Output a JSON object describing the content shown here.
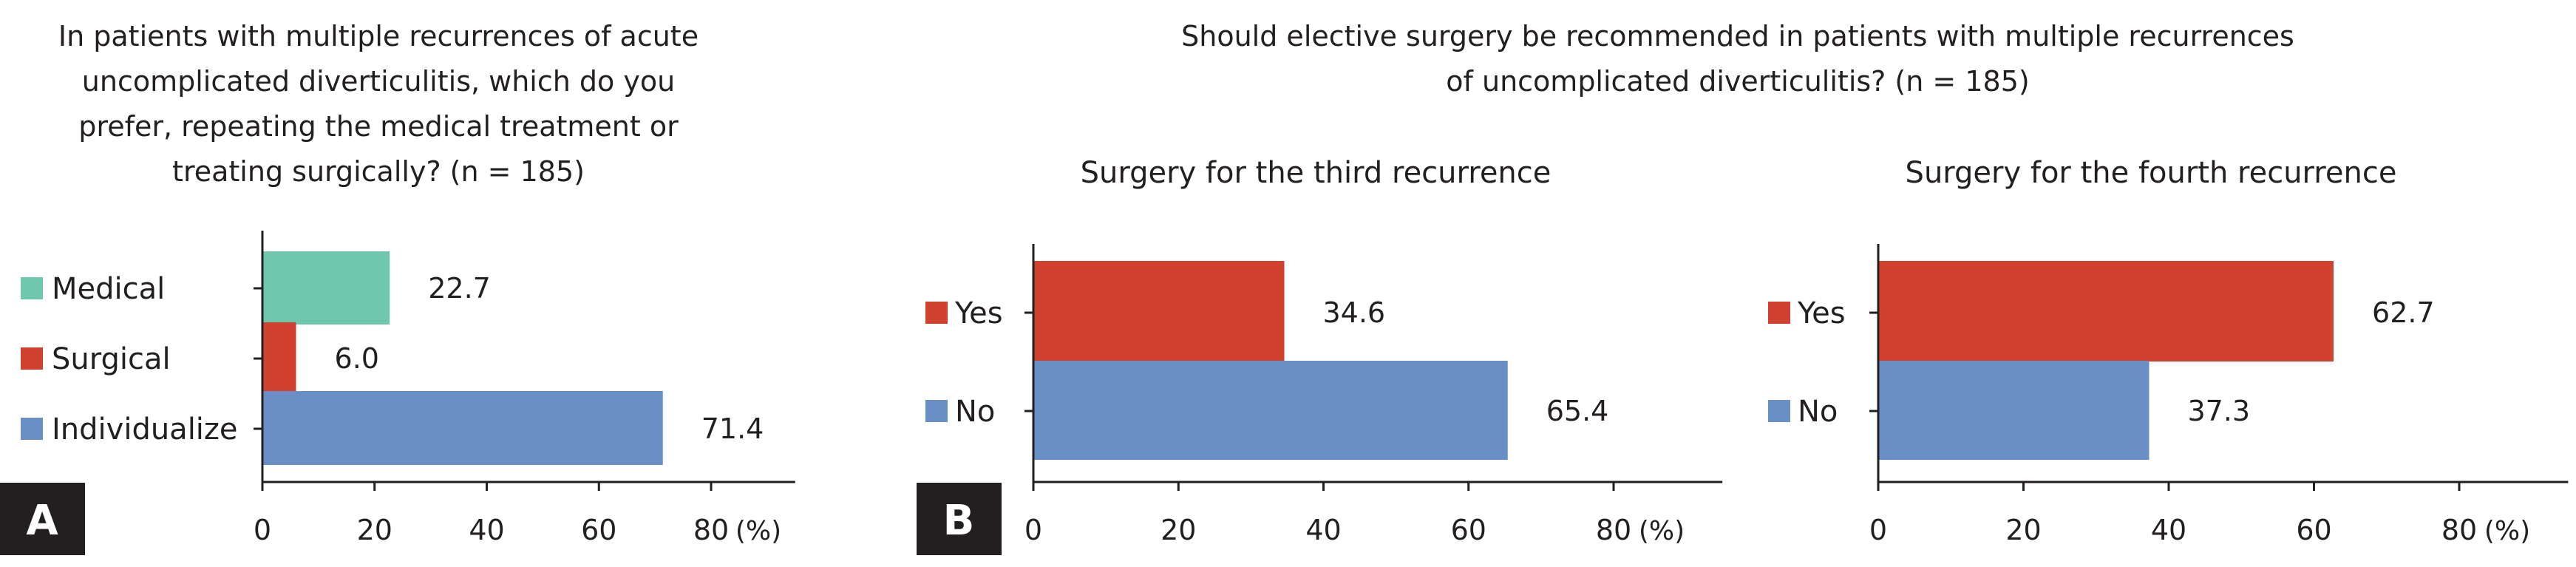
{
  "colors": {
    "medical": "#6fc7ae",
    "surgical": "#d0412f",
    "individualize": "#6a8ec6",
    "yes": "#d0412f",
    "no": "#6a8ec6",
    "axis": "#231f20",
    "badge": "#231f20"
  },
  "chart_data": [
    {
      "type": "bar",
      "orientation": "horizontal",
      "panel": "A",
      "title": "In patients with multiple recurrences of acute uncomplicated diverticulitis, which do you prefer, repeating the medical treatment or treating surgically? (n = 185)",
      "title_lines": [
        "In patients with multiple recurrences of acute",
        "uncomplicated diverticulitis, which do you",
        "prefer, repeating the medical treatment or",
        "treating surgically? (n = 185)"
      ],
      "subtitle": "",
      "categories": [
        "Medical",
        "Surgical",
        "Individualize"
      ],
      "values": [
        22.7,
        6.0,
        71.4
      ],
      "value_labels": [
        "22.7",
        "6.0",
        "71.4"
      ],
      "xlim": [
        0,
        95
      ],
      "xticks": [
        0,
        20,
        40,
        60,
        80
      ],
      "xunit": "(%)",
      "legend": "left"
    },
    {
      "type": "bar",
      "orientation": "horizontal",
      "panel": "B",
      "title": "Should elective surgery be recommended in patients with multiple recurrences of uncomplicated diverticulitis? (n = 185)",
      "title_lines": [
        "Should elective surgery be recommended in patients with multiple recurrences",
        "of uncomplicated diverticulitis? (n = 185)"
      ],
      "subtitle": "Surgery for the third recurrence",
      "categories": [
        "Yes",
        "No"
      ],
      "values": [
        34.6,
        65.4
      ],
      "value_labels": [
        "34.6",
        "65.4"
      ],
      "xlim": [
        0,
        95
      ],
      "xticks": [
        0,
        20,
        40,
        60,
        80
      ],
      "xunit": "(%)",
      "legend": "left"
    },
    {
      "type": "bar",
      "orientation": "horizontal",
      "subtitle": "Surgery for the fourth recurrence",
      "categories": [
        "Yes",
        "No"
      ],
      "values": [
        62.7,
        37.3
      ],
      "value_labels": [
        "62.7",
        "37.3"
      ],
      "xlim": [
        0,
        95
      ],
      "xticks": [
        0,
        20,
        40,
        60,
        80
      ],
      "xunit": "(%)",
      "legend": "left"
    }
  ]
}
